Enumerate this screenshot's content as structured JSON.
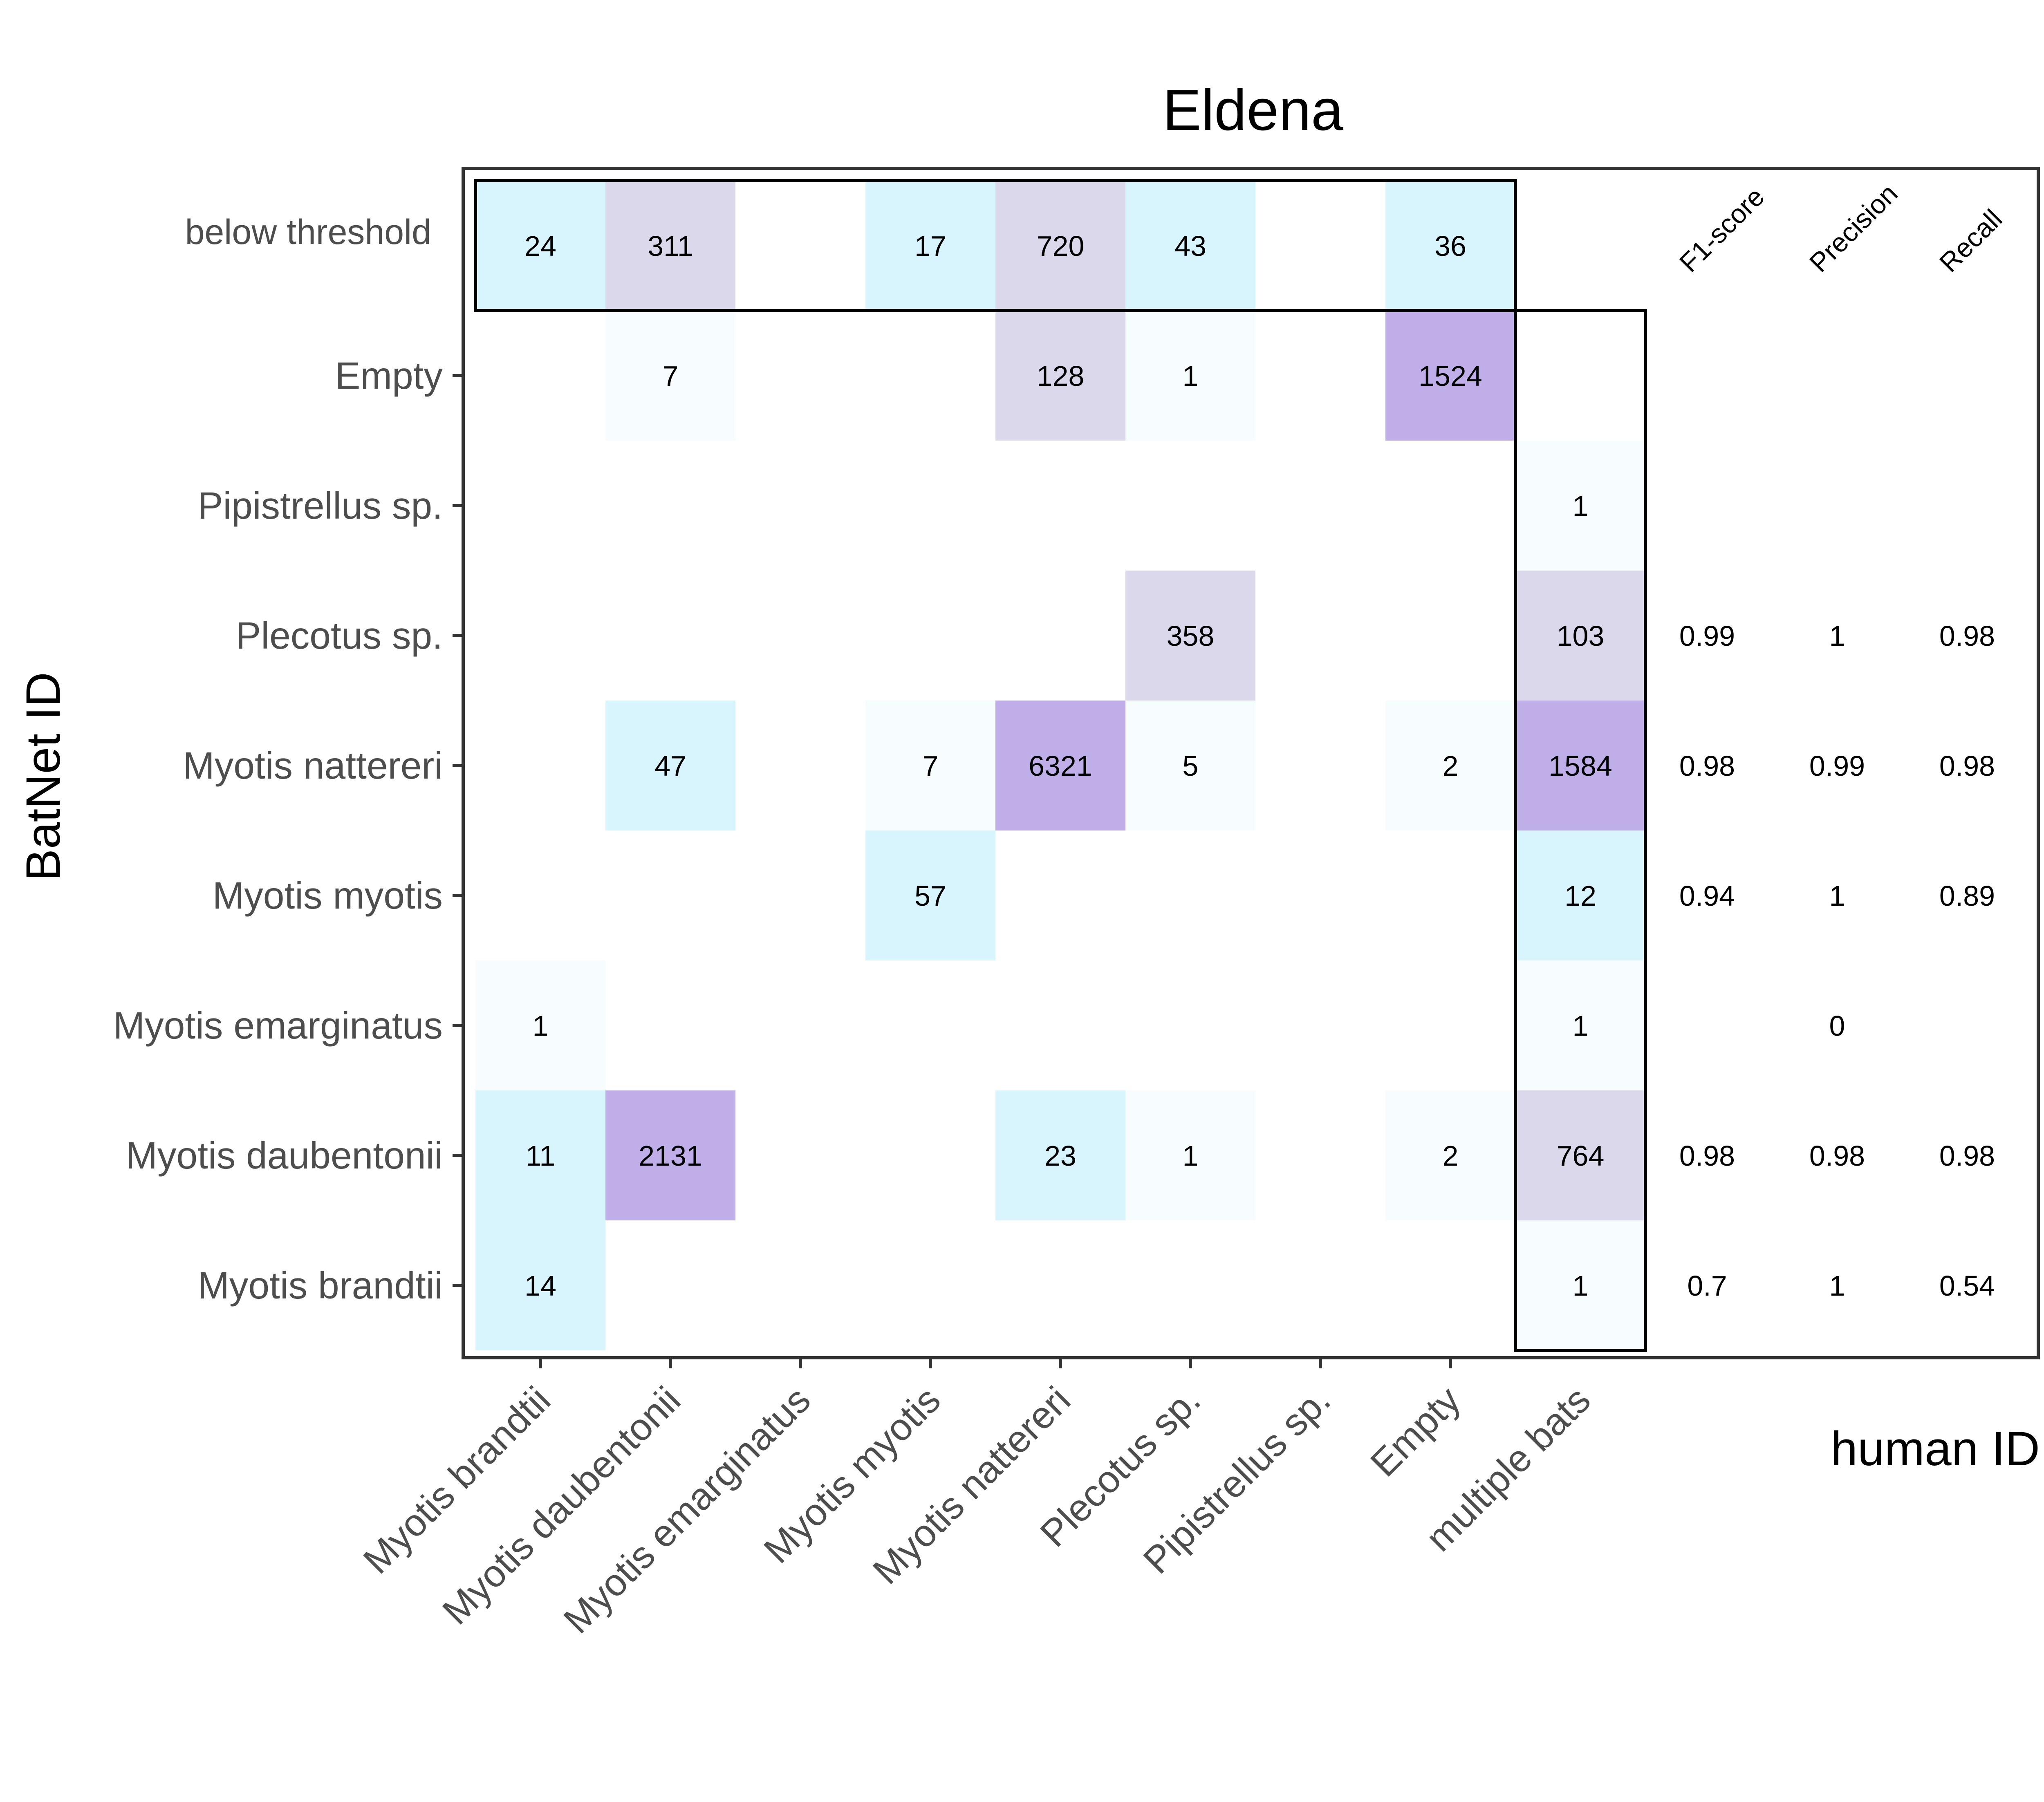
{
  "chart_data": {
    "type": "heatmap",
    "title": "Eldena",
    "xlabel": "human ID",
    "ylabel": "BatNet ID",
    "x_categories": [
      "Myotis brandtii",
      "Myotis daubentonii",
      "Myotis emarginatus",
      "Myotis myotis",
      "Myotis nattereri",
      "Plecotus sp.",
      "Pipistrellus sp.",
      "Empty",
      "multiple bats"
    ],
    "y_categories": [
      "below threshold",
      "Empty",
      "Pipistrellus sp.",
      "Plecotus sp.",
      "Myotis nattereri",
      "Myotis myotis",
      "Myotis emarginatus",
      "Myotis daubentonii",
      "Myotis brandtii"
    ],
    "cells": [
      {
        "x": "Myotis brandtii",
        "y": "below threshold",
        "value": 24,
        "color": "#d8f4fc"
      },
      {
        "x": "Myotis daubentonii",
        "y": "below threshold",
        "value": 311,
        "color": "#dbd8ec"
      },
      {
        "x": "Myotis myotis",
        "y": "below threshold",
        "value": 17,
        "color": "#d8f4fc"
      },
      {
        "x": "Myotis nattereri",
        "y": "below threshold",
        "value": 720,
        "color": "#dbd8ec"
      },
      {
        "x": "Plecotus sp.",
        "y": "below threshold",
        "value": 43,
        "color": "#d8f4fc"
      },
      {
        "x": "Empty",
        "y": "below threshold",
        "value": 36,
        "color": "#d8f4fc"
      },
      {
        "x": "Myotis daubentonii",
        "y": "Empty",
        "value": 7,
        "color": "#f7fdff"
      },
      {
        "x": "Myotis nattereri",
        "y": "Empty",
        "value": 128,
        "color": "#dbd8ec"
      },
      {
        "x": "Plecotus sp.",
        "y": "Empty",
        "value": 1,
        "color": "#f7fdff"
      },
      {
        "x": "Empty",
        "y": "Empty",
        "value": 1524,
        "color": "#bfaee8"
      },
      {
        "x": "multiple bats",
        "y": "Pipistrellus sp.",
        "value": 1,
        "color": "#f7fdff"
      },
      {
        "x": "Plecotus sp.",
        "y": "Plecotus sp.",
        "value": 358,
        "color": "#dbd8ec"
      },
      {
        "x": "multiple bats",
        "y": "Plecotus sp.",
        "value": 103,
        "color": "#dbd8ec"
      },
      {
        "x": "Myotis daubentonii",
        "y": "Myotis nattereri",
        "value": 47,
        "color": "#d8f4fc"
      },
      {
        "x": "Myotis myotis",
        "y": "Myotis nattereri",
        "value": 7,
        "color": "#f7fdff"
      },
      {
        "x": "Myotis nattereri",
        "y": "Myotis nattereri",
        "value": 6321,
        "color": "#bfaee8"
      },
      {
        "x": "Plecotus sp.",
        "y": "Myotis nattereri",
        "value": 5,
        "color": "#f7fdff"
      },
      {
        "x": "Empty",
        "y": "Myotis nattereri",
        "value": 2,
        "color": "#f7fdff"
      },
      {
        "x": "multiple bats",
        "y": "Myotis nattereri",
        "value": 1584,
        "color": "#bfaee8"
      },
      {
        "x": "Myotis myotis",
        "y": "Myotis myotis",
        "value": 57,
        "color": "#d8f4fc"
      },
      {
        "x": "multiple bats",
        "y": "Myotis myotis",
        "value": 12,
        "color": "#d8f4fc"
      },
      {
        "x": "Myotis brandtii",
        "y": "Myotis emarginatus",
        "value": 1,
        "color": "#f7fdff"
      },
      {
        "x": "multiple bats",
        "y": "Myotis emarginatus",
        "value": 1,
        "color": "#f7fdff"
      },
      {
        "x": "Myotis brandtii",
        "y": "Myotis daubentonii",
        "value": 11,
        "color": "#d8f4fc"
      },
      {
        "x": "Myotis daubentonii",
        "y": "Myotis daubentonii",
        "value": 2131,
        "color": "#bfaee8"
      },
      {
        "x": "Myotis nattereri",
        "y": "Myotis daubentonii",
        "value": 23,
        "color": "#d8f4fc"
      },
      {
        "x": "Plecotus sp.",
        "y": "Myotis daubentonii",
        "value": 1,
        "color": "#f7fdff"
      },
      {
        "x": "Empty",
        "y": "Myotis daubentonii",
        "value": 2,
        "color": "#f7fdff"
      },
      {
        "x": "multiple bats",
        "y": "Myotis daubentonii",
        "value": 764,
        "color": "#dbd8ec"
      },
      {
        "x": "Myotis brandtii",
        "y": "Myotis brandtii",
        "value": 14,
        "color": "#d8f4fc"
      },
      {
        "x": "multiple bats",
        "y": "Myotis brandtii",
        "value": 1,
        "color": "#f7fdff"
      }
    ],
    "metrics": {
      "columns": [
        "F1-score",
        "Precision",
        "Recall"
      ],
      "rows": [
        {
          "y": "Plecotus sp.",
          "values": [
            "0.99",
            "1",
            "0.98"
          ]
        },
        {
          "y": "Myotis nattereri",
          "values": [
            "0.98",
            "0.99",
            "0.98"
          ]
        },
        {
          "y": "Myotis myotis",
          "values": [
            "0.94",
            "1",
            "0.89"
          ]
        },
        {
          "y": "Myotis emarginatus",
          "values": [
            "",
            "0",
            ""
          ]
        },
        {
          "y": "Myotis daubentonii",
          "values": [
            "0.98",
            "0.98",
            "0.98"
          ]
        },
        {
          "y": "Myotis brandtii",
          "values": [
            "0.7",
            "1",
            "0.54"
          ]
        }
      ]
    },
    "highlight_boxes": [
      "below threshold row",
      "multiple bats column"
    ],
    "legend": "none",
    "grid": false
  }
}
